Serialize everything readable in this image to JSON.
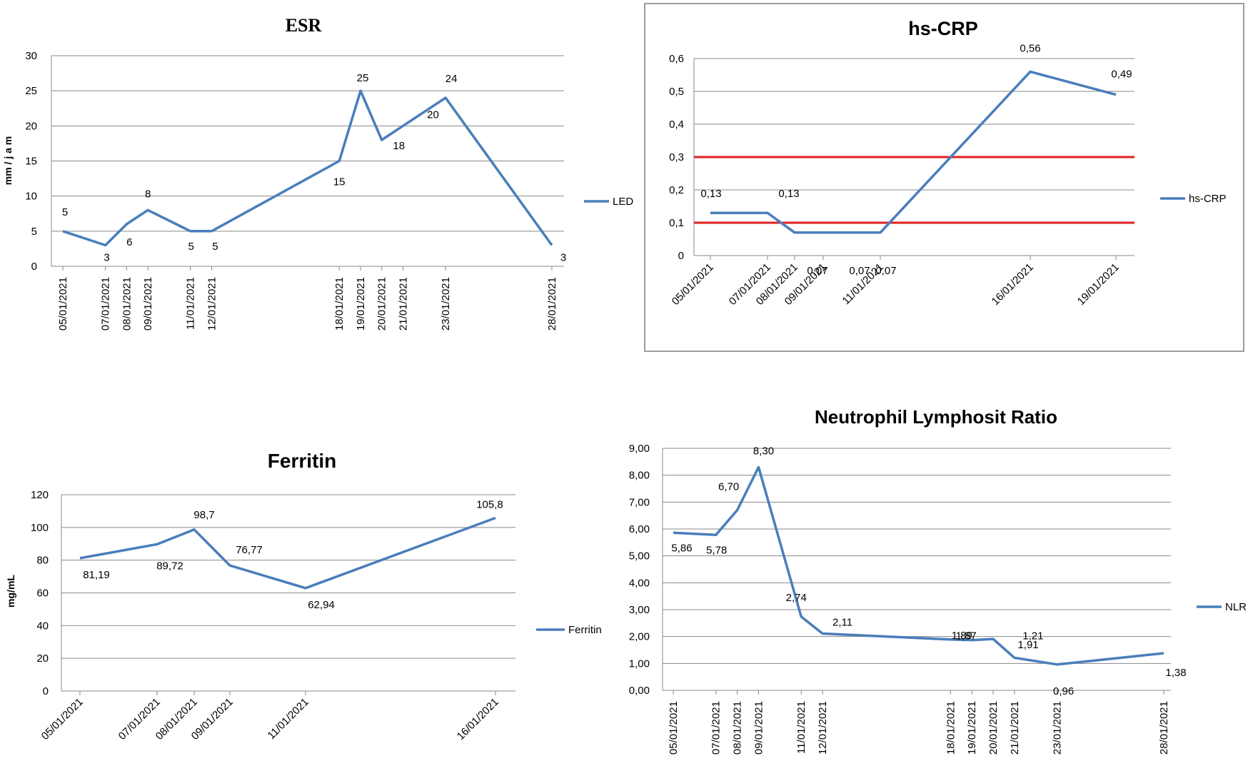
{
  "colors": {
    "series": "#4a7ebb",
    "threshold": "#e02020",
    "grid": "#8a8a8a"
  },
  "chart_data": [
    {
      "type": "line",
      "title": "ESR",
      "ylabel": "mm / j a m",
      "xlabel": "",
      "ylim": [
        0,
        30
      ],
      "yticks": [
        "0",
        "5",
        "10",
        "15",
        "20",
        "25",
        "30"
      ],
      "series": [
        {
          "name": "LED",
          "x": [
            "05/01/2021",
            "07/01/2021",
            "08/01/2021",
            "09/01/2021",
            "11/01/2021",
            "12/01/2021",
            "18/01/2021",
            "19/01/2021",
            "20/01/2021",
            "21/01/2021",
            "23/01/2021",
            "28/01/2021"
          ],
          "values": [
            5,
            3,
            6,
            8,
            5,
            5,
            15,
            25,
            18,
            20,
            24,
            3
          ],
          "labels": [
            "5",
            "3",
            "6",
            "8",
            "5",
            "5",
            "15",
            "25",
            "18",
            "20",
            "24",
            "3"
          ]
        }
      ],
      "legend": "right"
    },
    {
      "type": "line",
      "title": "hs-CRP",
      "ylabel": "",
      "xlabel": "",
      "ylim": [
        0,
        0.6
      ],
      "yticks": [
        "0",
        "0,1",
        "0,2",
        "0,3",
        "0,4",
        "0,5",
        "0,6"
      ],
      "series": [
        {
          "name": "hs-CRP",
          "x": [
            "05/01/2021",
            "07/01/2021",
            "08/01/2021",
            "09/01/2021",
            "11/01/2021",
            "16/01/2021",
            "19/01/2021"
          ],
          "values": [
            0.13,
            0.13,
            0.07,
            0.07,
            0.07,
            0.56,
            0.49
          ],
          "labels": [
            "0,13",
            "0,13",
            "0,07",
            "0,07",
            "0,07",
            "0,56",
            "0,49"
          ]
        }
      ],
      "reference_lines": [
        0.1,
        0.3
      ],
      "legend": "right"
    },
    {
      "type": "line",
      "title": "Ferritin",
      "ylabel": "mg/mL",
      "xlabel": "",
      "ylim": [
        0,
        120
      ],
      "yticks": [
        "0",
        "20",
        "40",
        "60",
        "80",
        "100",
        "120"
      ],
      "series": [
        {
          "name": "Ferritin",
          "x": [
            "05/01/2021",
            "07/01/2021",
            "08/01/2021",
            "09/01/2021",
            "11/01/2021",
            "16/01/2021"
          ],
          "values": [
            81.19,
            89.72,
            98.7,
            76.77,
            62.94,
            105.8
          ],
          "labels": [
            "81,19",
            "89,72",
            "98,7",
            "76,77",
            "62,94",
            "105,8"
          ]
        }
      ],
      "legend": "right"
    },
    {
      "type": "line",
      "title": "Neutrophil Lymphosit Ratio",
      "ylabel": "",
      "xlabel": "",
      "ylim": [
        0,
        9
      ],
      "yticks": [
        "0,00",
        "1,00",
        "2,00",
        "3,00",
        "4,00",
        "5,00",
        "6,00",
        "7,00",
        "8,00",
        "9,00"
      ],
      "series": [
        {
          "name": "NLR",
          "x": [
            "05/01/2021",
            "07/01/2021",
            "08/01/2021",
            "09/01/2021",
            "11/01/2021",
            "12/01/2021",
            "18/01/2021",
            "19/01/2021",
            "20/01/2021",
            "21/01/2021",
            "23/01/2021",
            "28/01/2021"
          ],
          "values": [
            5.86,
            5.78,
            6.7,
            8.3,
            2.74,
            2.11,
            1.89,
            1.87,
            1.91,
            1.21,
            0.96,
            1.38
          ],
          "labels": [
            "5,86",
            "5,78",
            "6,70",
            "8,30",
            "2,74",
            "2,11",
            "1,89",
            "1,87",
            "1,91",
            "1,21",
            "0,96",
            "1,38"
          ]
        }
      ],
      "legend": "right"
    }
  ]
}
